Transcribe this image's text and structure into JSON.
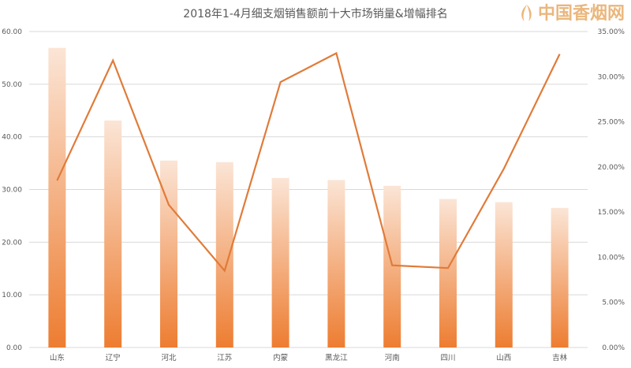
{
  "chart_data": {
    "type": "bar+line",
    "title": "2018年1-4月细支烟销售额前十大市场销量&增幅排名",
    "categories": [
      "山东",
      "辽宁",
      "河北",
      "江苏",
      "内蒙",
      "黑龙江",
      "河南",
      "四川",
      "山西",
      "吉林"
    ],
    "series": [
      {
        "type": "bar",
        "axis": "left",
        "values": [
          56.9,
          43.1,
          35.5,
          35.2,
          32.2,
          31.8,
          30.7,
          28.2,
          27.6,
          26.5
        ]
      },
      {
        "type": "line",
        "axis": "right",
        "values": [
          18.5,
          31.8,
          15.8,
          8.5,
          29.4,
          32.6,
          9.1,
          8.8,
          19.8,
          32.5
        ]
      }
    ],
    "left_axis": {
      "ylim": [
        0,
        60
      ],
      "ticks": [
        "0.00",
        "10.00",
        "20.00",
        "30.00",
        "40.00",
        "50.00",
        "60.00"
      ]
    },
    "right_axis": {
      "ylim": [
        0,
        35
      ],
      "ticks": [
        "0.00%",
        "5.00%",
        "10.00%",
        "15.00%",
        "20.00%",
        "25.00%",
        "30.00%",
        "35.00%"
      ]
    },
    "grid": true,
    "colors": {
      "bar_bottom": "#ed7d31",
      "bar_top": "#fbe5d6",
      "line": "#e07b39",
      "grid": "#d9d9d9"
    }
  },
  "watermark": {
    "text": "中国香烟网"
  }
}
